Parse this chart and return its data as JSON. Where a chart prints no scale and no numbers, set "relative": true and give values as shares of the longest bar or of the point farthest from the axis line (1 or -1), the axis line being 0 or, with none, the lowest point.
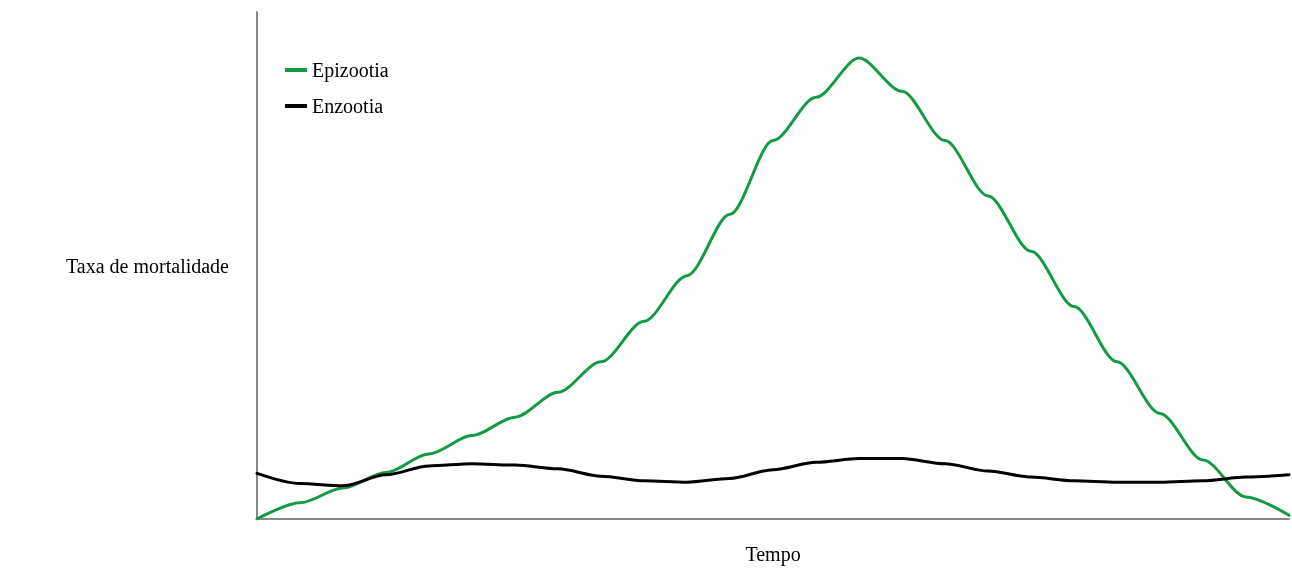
{
  "chart_data": {
    "type": "line",
    "relative": true,
    "xlabel": "Tempo",
    "ylabel": "Taxa de mortalidade",
    "legend": "top left",
    "grid": false,
    "marker": "none",
    "line_style": "solid",
    "categories": [
      null,
      null,
      null,
      null,
      null,
      null,
      null,
      null,
      null,
      null,
      null,
      null,
      null,
      null,
      null,
      null,
      null,
      null,
      null,
      null,
      null,
      null,
      null,
      null,
      null
    ],
    "series": [
      {
        "name": "Epizootia",
        "color": "#149a43",
        "values": [
          0,
          0.035,
          0.067,
          0.101,
          0.141,
          0.181,
          0.221,
          0.275,
          0.341,
          0.429,
          0.528,
          0.661,
          0.821,
          0.915,
          1,
          0.928,
          0.821,
          0.701,
          0.581,
          0.461,
          0.341,
          0.229,
          0.128,
          0.048,
          0.008
        ]
      },
      {
        "name": "Enzootia",
        "color": "#000000",
        "values": [
          0.099,
          0.077,
          0.072,
          0.096,
          0.115,
          0.12,
          0.117,
          0.109,
          0.093,
          0.083,
          0.08,
          0.088,
          0.107,
          0.123,
          0.131,
          0.131,
          0.12,
          0.104,
          0.091,
          0.083,
          0.08,
          0.08,
          0.083,
          0.091,
          0.096
        ]
      }
    ]
  }
}
